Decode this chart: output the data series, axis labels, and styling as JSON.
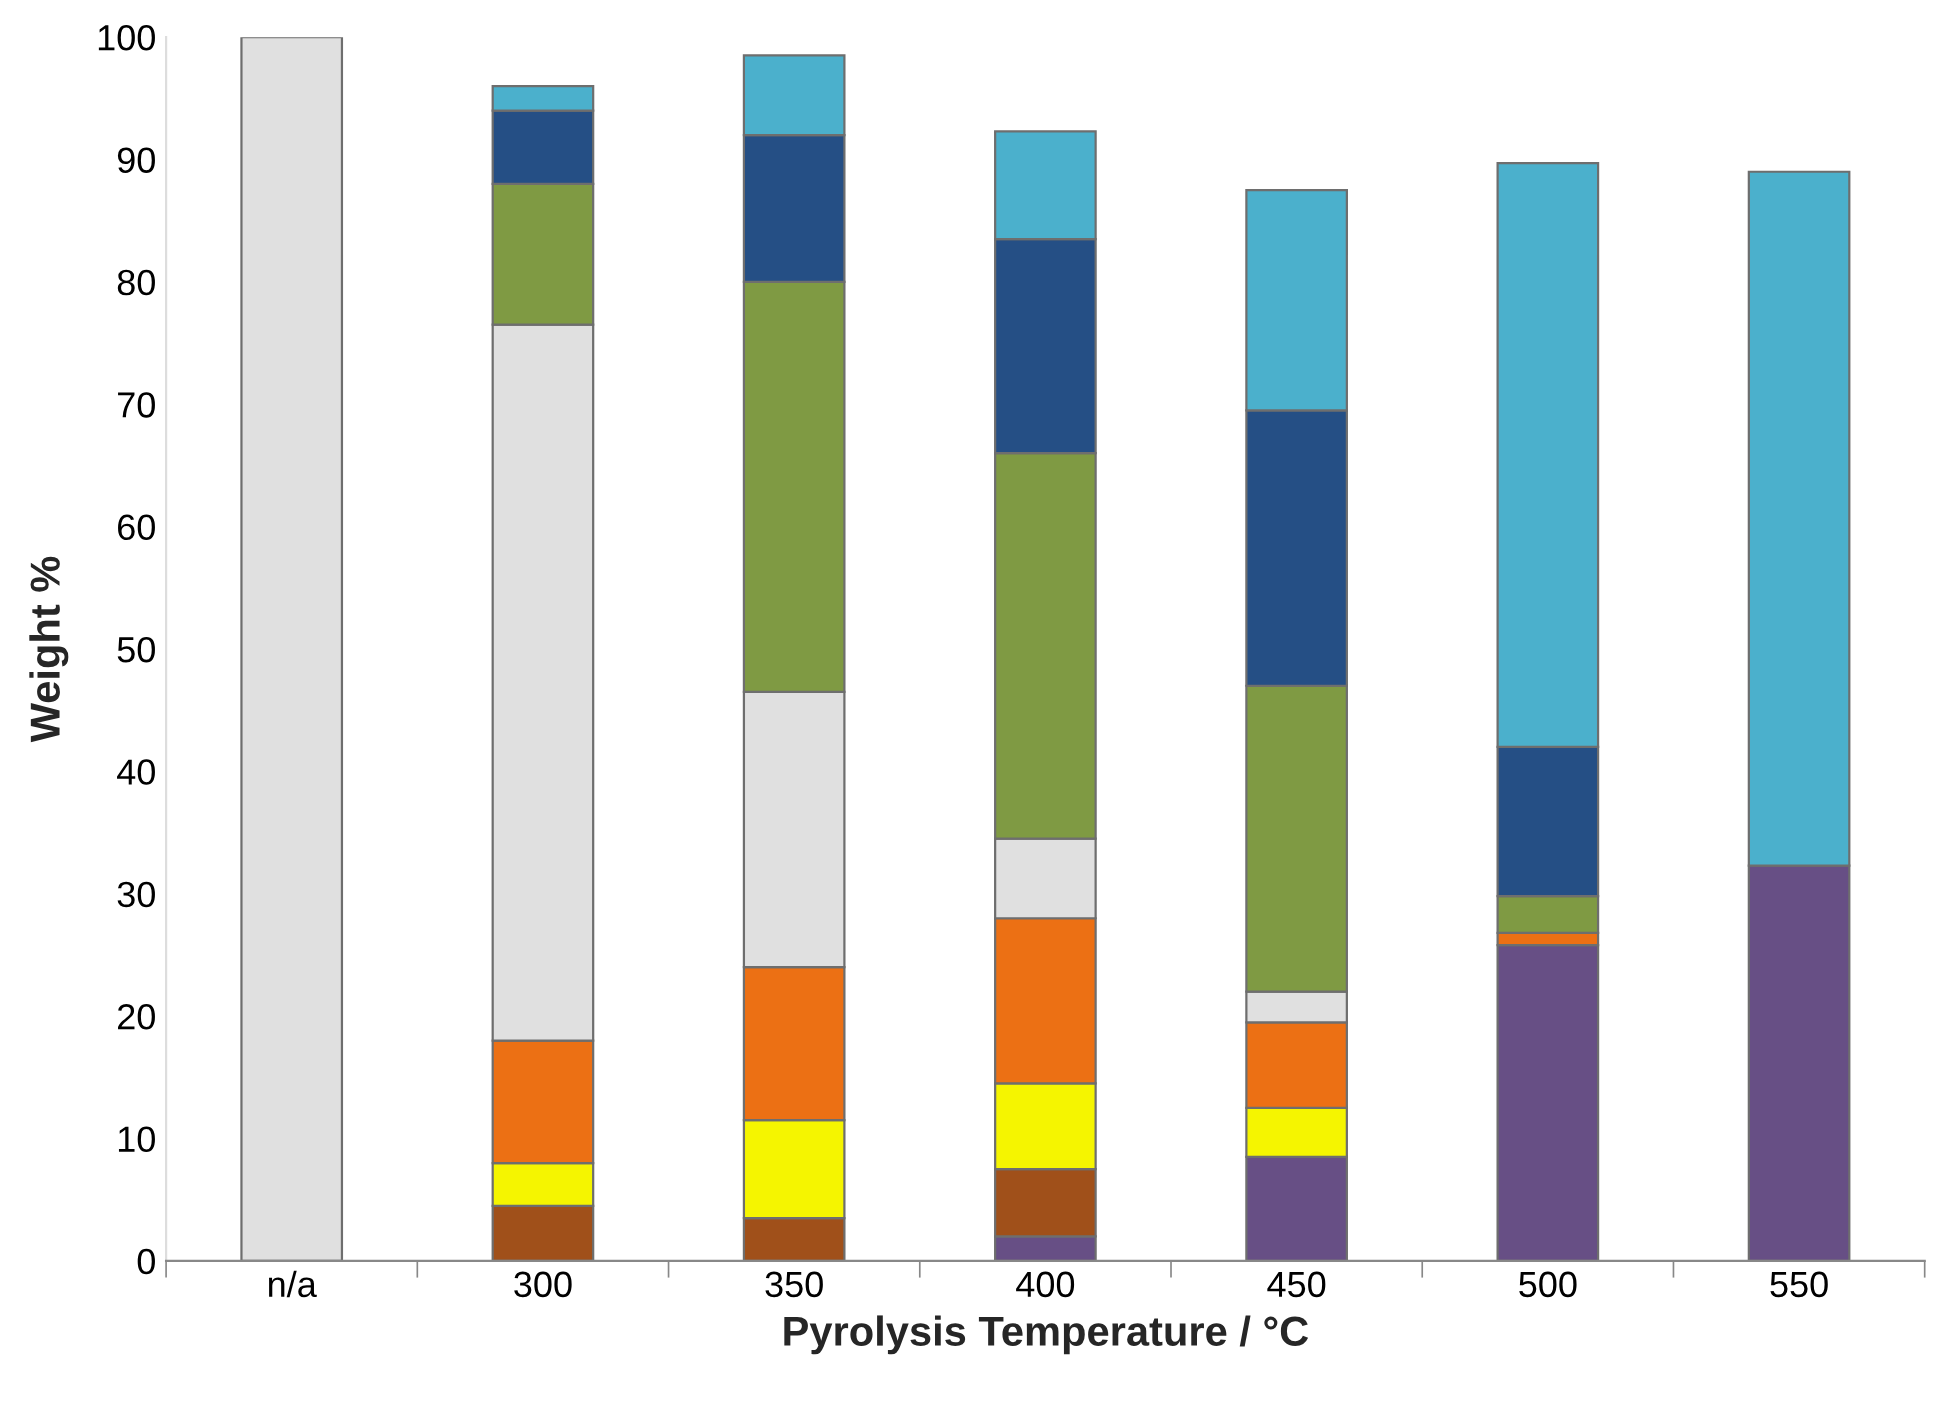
{
  "chart_data": {
    "type": "bar",
    "stacked": true,
    "xlabel": "Pyrolysis Temperature / °C",
    "ylabel": "Weight %",
    "categories": [
      "n/a",
      "300",
      "350",
      "400",
      "450",
      "500",
      "550"
    ],
    "series": [
      {
        "color": "#674f85",
        "values": [
          0,
          0,
          0,
          2,
          8.5,
          25.8,
          32.3
        ]
      },
      {
        "color": "#a0501a",
        "values": [
          0,
          4.5,
          3.5,
          5.5,
          0,
          0,
          0
        ]
      },
      {
        "color": "#f5f500",
        "values": [
          0,
          3.5,
          8,
          7,
          4,
          0,
          0
        ]
      },
      {
        "color": "#ec7014",
        "values": [
          0,
          10,
          12.5,
          13.5,
          7,
          1,
          0
        ]
      },
      {
        "color": "#e0e0e0",
        "values": [
          100,
          58.5,
          22.5,
          6.5,
          2.5,
          0,
          0
        ]
      },
      {
        "color": "#7f9a43",
        "values": [
          0,
          11.5,
          33.5,
          31.5,
          25,
          3,
          0
        ]
      },
      {
        "color": "#254f85",
        "values": [
          0,
          6,
          12,
          17.5,
          22.5,
          12.2,
          0
        ]
      },
      {
        "color": "#4bb0cc",
        "values": [
          0,
          2,
          6.5,
          8.8,
          18,
          47.7,
          56.7
        ]
      }
    ],
    "ylim": [
      0,
      100
    ],
    "yticks": [
      0,
      10,
      20,
      30,
      40,
      50,
      60,
      70,
      80,
      90,
      100
    ],
    "grid": false,
    "legend": false
  }
}
